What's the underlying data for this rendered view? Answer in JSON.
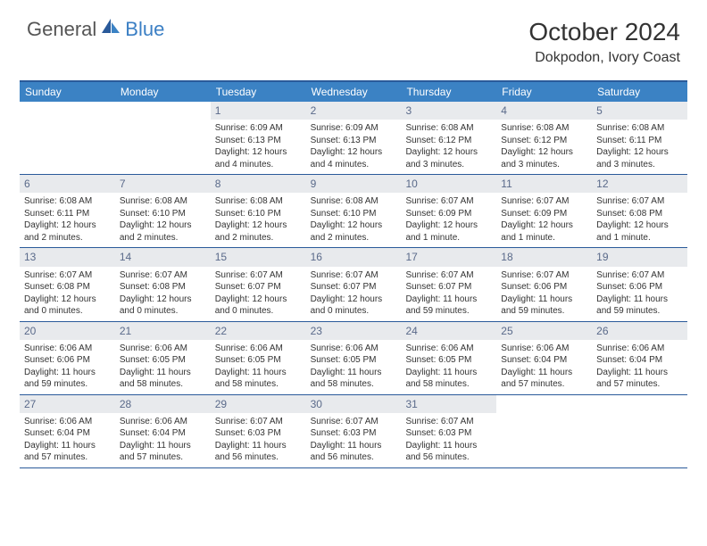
{
  "logo": {
    "text1": "General",
    "text2": "Blue"
  },
  "title": "October 2024",
  "location": "Dokpodon, Ivory Coast",
  "colors": {
    "header_bar": "#3b82c4",
    "border": "#2a5a9a",
    "day_num_bg": "#e8eaed",
    "day_num_color": "#5a6a8a",
    "logo_blue": "#3b7fc4",
    "text": "#333333",
    "background": "#ffffff"
  },
  "weekdays": [
    "Sunday",
    "Monday",
    "Tuesday",
    "Wednesday",
    "Thursday",
    "Friday",
    "Saturday"
  ],
  "weeks": [
    [
      {
        "empty": true
      },
      {
        "empty": true
      },
      {
        "num": "1",
        "sunrise": "Sunrise: 6:09 AM",
        "sunset": "Sunset: 6:13 PM",
        "daylight1": "Daylight: 12 hours",
        "daylight2": "and 4 minutes."
      },
      {
        "num": "2",
        "sunrise": "Sunrise: 6:09 AM",
        "sunset": "Sunset: 6:13 PM",
        "daylight1": "Daylight: 12 hours",
        "daylight2": "and 4 minutes."
      },
      {
        "num": "3",
        "sunrise": "Sunrise: 6:08 AM",
        "sunset": "Sunset: 6:12 PM",
        "daylight1": "Daylight: 12 hours",
        "daylight2": "and 3 minutes."
      },
      {
        "num": "4",
        "sunrise": "Sunrise: 6:08 AM",
        "sunset": "Sunset: 6:12 PM",
        "daylight1": "Daylight: 12 hours",
        "daylight2": "and 3 minutes."
      },
      {
        "num": "5",
        "sunrise": "Sunrise: 6:08 AM",
        "sunset": "Sunset: 6:11 PM",
        "daylight1": "Daylight: 12 hours",
        "daylight2": "and 3 minutes."
      }
    ],
    [
      {
        "num": "6",
        "sunrise": "Sunrise: 6:08 AM",
        "sunset": "Sunset: 6:11 PM",
        "daylight1": "Daylight: 12 hours",
        "daylight2": "and 2 minutes."
      },
      {
        "num": "7",
        "sunrise": "Sunrise: 6:08 AM",
        "sunset": "Sunset: 6:10 PM",
        "daylight1": "Daylight: 12 hours",
        "daylight2": "and 2 minutes."
      },
      {
        "num": "8",
        "sunrise": "Sunrise: 6:08 AM",
        "sunset": "Sunset: 6:10 PM",
        "daylight1": "Daylight: 12 hours",
        "daylight2": "and 2 minutes."
      },
      {
        "num": "9",
        "sunrise": "Sunrise: 6:08 AM",
        "sunset": "Sunset: 6:10 PM",
        "daylight1": "Daylight: 12 hours",
        "daylight2": "and 2 minutes."
      },
      {
        "num": "10",
        "sunrise": "Sunrise: 6:07 AM",
        "sunset": "Sunset: 6:09 PM",
        "daylight1": "Daylight: 12 hours",
        "daylight2": "and 1 minute."
      },
      {
        "num": "11",
        "sunrise": "Sunrise: 6:07 AM",
        "sunset": "Sunset: 6:09 PM",
        "daylight1": "Daylight: 12 hours",
        "daylight2": "and 1 minute."
      },
      {
        "num": "12",
        "sunrise": "Sunrise: 6:07 AM",
        "sunset": "Sunset: 6:08 PM",
        "daylight1": "Daylight: 12 hours",
        "daylight2": "and 1 minute."
      }
    ],
    [
      {
        "num": "13",
        "sunrise": "Sunrise: 6:07 AM",
        "sunset": "Sunset: 6:08 PM",
        "daylight1": "Daylight: 12 hours",
        "daylight2": "and 0 minutes."
      },
      {
        "num": "14",
        "sunrise": "Sunrise: 6:07 AM",
        "sunset": "Sunset: 6:08 PM",
        "daylight1": "Daylight: 12 hours",
        "daylight2": "and 0 minutes."
      },
      {
        "num": "15",
        "sunrise": "Sunrise: 6:07 AM",
        "sunset": "Sunset: 6:07 PM",
        "daylight1": "Daylight: 12 hours",
        "daylight2": "and 0 minutes."
      },
      {
        "num": "16",
        "sunrise": "Sunrise: 6:07 AM",
        "sunset": "Sunset: 6:07 PM",
        "daylight1": "Daylight: 12 hours",
        "daylight2": "and 0 minutes."
      },
      {
        "num": "17",
        "sunrise": "Sunrise: 6:07 AM",
        "sunset": "Sunset: 6:07 PM",
        "daylight1": "Daylight: 11 hours",
        "daylight2": "and 59 minutes."
      },
      {
        "num": "18",
        "sunrise": "Sunrise: 6:07 AM",
        "sunset": "Sunset: 6:06 PM",
        "daylight1": "Daylight: 11 hours",
        "daylight2": "and 59 minutes."
      },
      {
        "num": "19",
        "sunrise": "Sunrise: 6:07 AM",
        "sunset": "Sunset: 6:06 PM",
        "daylight1": "Daylight: 11 hours",
        "daylight2": "and 59 minutes."
      }
    ],
    [
      {
        "num": "20",
        "sunrise": "Sunrise: 6:06 AM",
        "sunset": "Sunset: 6:06 PM",
        "daylight1": "Daylight: 11 hours",
        "daylight2": "and 59 minutes."
      },
      {
        "num": "21",
        "sunrise": "Sunrise: 6:06 AM",
        "sunset": "Sunset: 6:05 PM",
        "daylight1": "Daylight: 11 hours",
        "daylight2": "and 58 minutes."
      },
      {
        "num": "22",
        "sunrise": "Sunrise: 6:06 AM",
        "sunset": "Sunset: 6:05 PM",
        "daylight1": "Daylight: 11 hours",
        "daylight2": "and 58 minutes."
      },
      {
        "num": "23",
        "sunrise": "Sunrise: 6:06 AM",
        "sunset": "Sunset: 6:05 PM",
        "daylight1": "Daylight: 11 hours",
        "daylight2": "and 58 minutes."
      },
      {
        "num": "24",
        "sunrise": "Sunrise: 6:06 AM",
        "sunset": "Sunset: 6:05 PM",
        "daylight1": "Daylight: 11 hours",
        "daylight2": "and 58 minutes."
      },
      {
        "num": "25",
        "sunrise": "Sunrise: 6:06 AM",
        "sunset": "Sunset: 6:04 PM",
        "daylight1": "Daylight: 11 hours",
        "daylight2": "and 57 minutes."
      },
      {
        "num": "26",
        "sunrise": "Sunrise: 6:06 AM",
        "sunset": "Sunset: 6:04 PM",
        "daylight1": "Daylight: 11 hours",
        "daylight2": "and 57 minutes."
      }
    ],
    [
      {
        "num": "27",
        "sunrise": "Sunrise: 6:06 AM",
        "sunset": "Sunset: 6:04 PM",
        "daylight1": "Daylight: 11 hours",
        "daylight2": "and 57 minutes."
      },
      {
        "num": "28",
        "sunrise": "Sunrise: 6:06 AM",
        "sunset": "Sunset: 6:04 PM",
        "daylight1": "Daylight: 11 hours",
        "daylight2": "and 57 minutes."
      },
      {
        "num": "29",
        "sunrise": "Sunrise: 6:07 AM",
        "sunset": "Sunset: 6:03 PM",
        "daylight1": "Daylight: 11 hours",
        "daylight2": "and 56 minutes."
      },
      {
        "num": "30",
        "sunrise": "Sunrise: 6:07 AM",
        "sunset": "Sunset: 6:03 PM",
        "daylight1": "Daylight: 11 hours",
        "daylight2": "and 56 minutes."
      },
      {
        "num": "31",
        "sunrise": "Sunrise: 6:07 AM",
        "sunset": "Sunset: 6:03 PM",
        "daylight1": "Daylight: 11 hours",
        "daylight2": "and 56 minutes."
      },
      {
        "empty": true
      },
      {
        "empty": true
      }
    ]
  ]
}
